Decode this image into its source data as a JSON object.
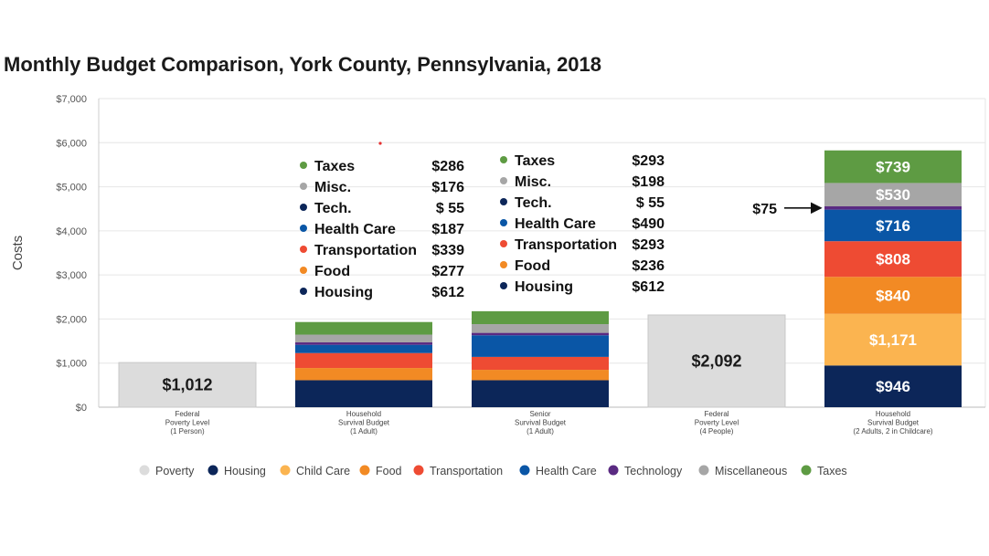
{
  "chart_data": {
    "type": "bar",
    "title": "Monthly Budget Comparison, York County, Pennsylvania, 2018",
    "ylabel": "Costs",
    "ylim": [
      0,
      7000
    ],
    "yticks": [
      {
        "value": 0,
        "label": "$0"
      },
      {
        "value": 1000,
        "label": "$1,000"
      },
      {
        "value": 2000,
        "label": "$2,000"
      },
      {
        "value": 3000,
        "label": "$3,000"
      },
      {
        "value": 4000,
        "label": "$4,000"
      },
      {
        "value": 5000,
        "label": "$5,000"
      },
      {
        "value": 6000,
        "label": "$6,000"
      },
      {
        "value": 7000,
        "label": "$7,000"
      }
    ],
    "grid": true,
    "stacked": true,
    "categories": [
      [
        "Federal",
        "Poverty Level",
        "(1 Person)"
      ],
      [
        "Household",
        "Survival Budget",
        "(1 Adult)"
      ],
      [
        "Senior",
        "Survival Budget",
        "(1 Adult)"
      ],
      [
        "Federal",
        "Poverty Level",
        "(4 People)"
      ],
      [
        "Household",
        "Survival Budget",
        "(2 Adults, 2 in Childcare)"
      ]
    ],
    "series": [
      {
        "name": "Poverty",
        "color": "#dcdcdc",
        "values": [
          1012,
          0,
          0,
          2092,
          0
        ]
      },
      {
        "name": "Housing",
        "color": "#0c2659",
        "values": [
          0,
          612,
          612,
          0,
          946
        ]
      },
      {
        "name": "Child Care",
        "color": "#fbb450",
        "values": [
          0,
          0,
          0,
          0,
          1171
        ]
      },
      {
        "name": "Food",
        "color": "#f28a24",
        "values": [
          0,
          277,
          236,
          0,
          840
        ]
      },
      {
        "name": "Transportation",
        "color": "#ee4b33",
        "values": [
          0,
          339,
          293,
          0,
          808
        ]
      },
      {
        "name": "Health Care",
        "color": "#0a56a6",
        "values": [
          0,
          187,
          490,
          0,
          716
        ]
      },
      {
        "name": "Technology",
        "color": "#5a2a82",
        "values": [
          0,
          55,
          55,
          0,
          75
        ]
      },
      {
        "name": "Miscellaneous",
        "color": "#a6a6a6",
        "values": [
          0,
          176,
          198,
          0,
          530
        ]
      },
      {
        "name": "Taxes",
        "color": "#5e9b43",
        "values": [
          0,
          286,
          293,
          0,
          739
        ]
      }
    ],
    "bar_labels": {
      "0": {
        "total": "$1,012"
      },
      "3": {
        "total": "$2,092"
      },
      "4": {
        "segments": [
          "$946",
          "$1,171",
          "$840",
          "$808",
          "$716",
          "",
          "$530",
          "$739"
        ]
      }
    },
    "breakdowns": [
      {
        "bar": 1,
        "items": [
          {
            "label": "Taxes",
            "value": "$286",
            "color": "#5e9b43"
          },
          {
            "label": "Misc.",
            "value": "$176",
            "color": "#a6a6a6"
          },
          {
            "label": "Tech.",
            "value": "$  55",
            "color": "#0c2659"
          },
          {
            "label": "Health Care",
            "value": "$187",
            "color": "#0a56a6"
          },
          {
            "label": "Transportation",
            "value": "$339",
            "color": "#ee4b33"
          },
          {
            "label": "Food",
            "value": "$277",
            "color": "#f28a24"
          },
          {
            "label": "Housing",
            "value": "$612",
            "color": "#0c2659"
          }
        ]
      },
      {
        "bar": 2,
        "items": [
          {
            "label": "Taxes",
            "value": "$293",
            "color": "#5e9b43"
          },
          {
            "label": "Misc.",
            "value": "$198",
            "color": "#a6a6a6"
          },
          {
            "label": "Tech.",
            "value": "$  55",
            "color": "#0c2659"
          },
          {
            "label": "Health Care",
            "value": "$490",
            "color": "#0a56a6"
          },
          {
            "label": "Transportation",
            "value": "$293",
            "color": "#ee4b33"
          },
          {
            "label": "Food",
            "value": "$236",
            "color": "#f28a24"
          },
          {
            "label": "Housing",
            "value": "$612",
            "color": "#0c2659"
          }
        ]
      }
    ],
    "annotation": {
      "text": "$75",
      "points_to": "Technology",
      "bar": 4
    },
    "legend": {
      "position": "bottom",
      "items": [
        "Poverty",
        "Housing",
        "Child Care",
        "Food",
        "Transportation",
        "Health Care",
        "Technology",
        "Miscellaneous",
        "Taxes"
      ]
    }
  }
}
